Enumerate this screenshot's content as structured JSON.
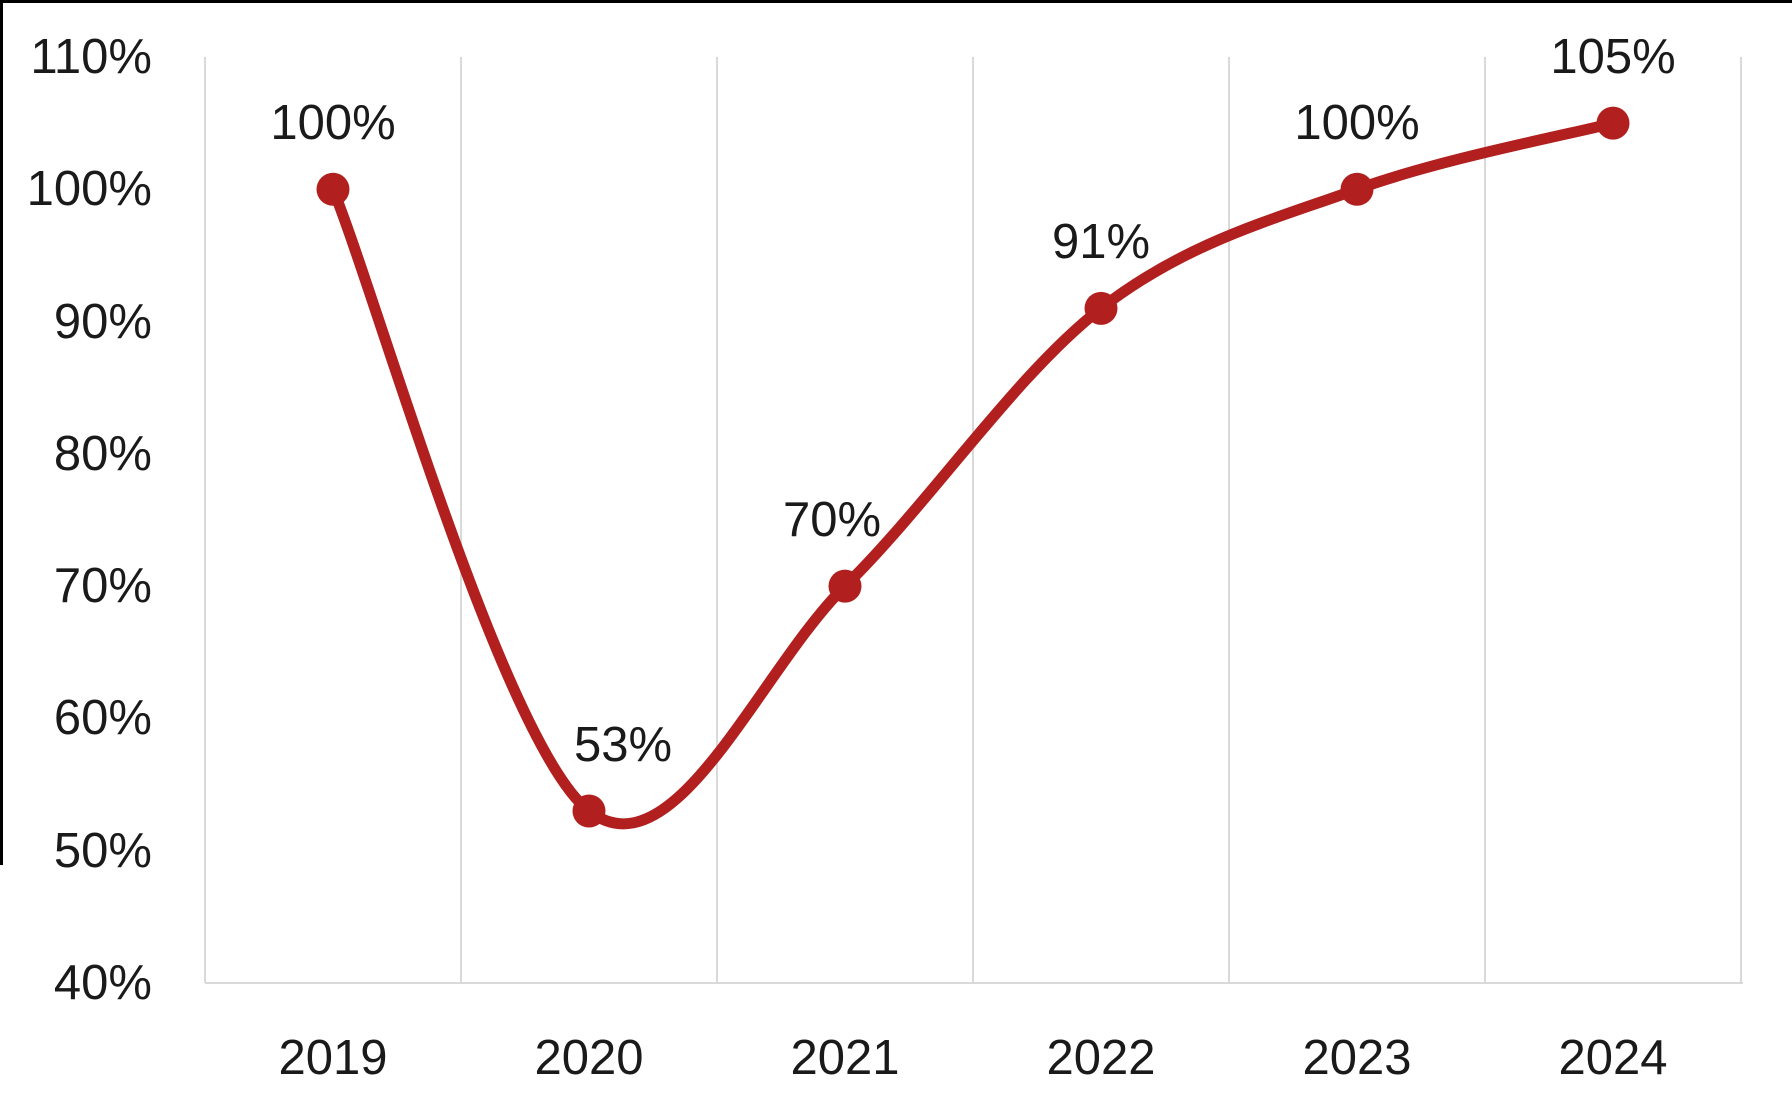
{
  "chart_data": {
    "type": "line",
    "title": "",
    "xlabel": "",
    "ylabel": "",
    "legend": "none",
    "categories": [
      "2019",
      "2020",
      "2021",
      "2022",
      "2023",
      "2024"
    ],
    "values": [
      100,
      53,
      70,
      91,
      100,
      105
    ],
    "data_labels": [
      "100%",
      "53%",
      "70%",
      "91%",
      "100%",
      "105%"
    ],
    "y_tick_labels": [
      "110%",
      "100%",
      "90%",
      "80%",
      "70%",
      "60%",
      "50%",
      "40%"
    ],
    "y_tick_values": [
      110,
      100,
      90,
      80,
      70,
      60,
      50,
      40
    ],
    "ylim": [
      40,
      110
    ],
    "grid": "vertical-only",
    "smooth_line": true,
    "marker_style": "filled-circle",
    "label_dx": [
      0,
      34,
      -13,
      0,
      0,
      0
    ],
    "colors": {
      "series": "#b21f1f",
      "gridline": "#d9d9d9",
      "axis_line": "#d9d9d9",
      "label_text": "#1a1a1a",
      "frame_border": "#000000"
    }
  }
}
